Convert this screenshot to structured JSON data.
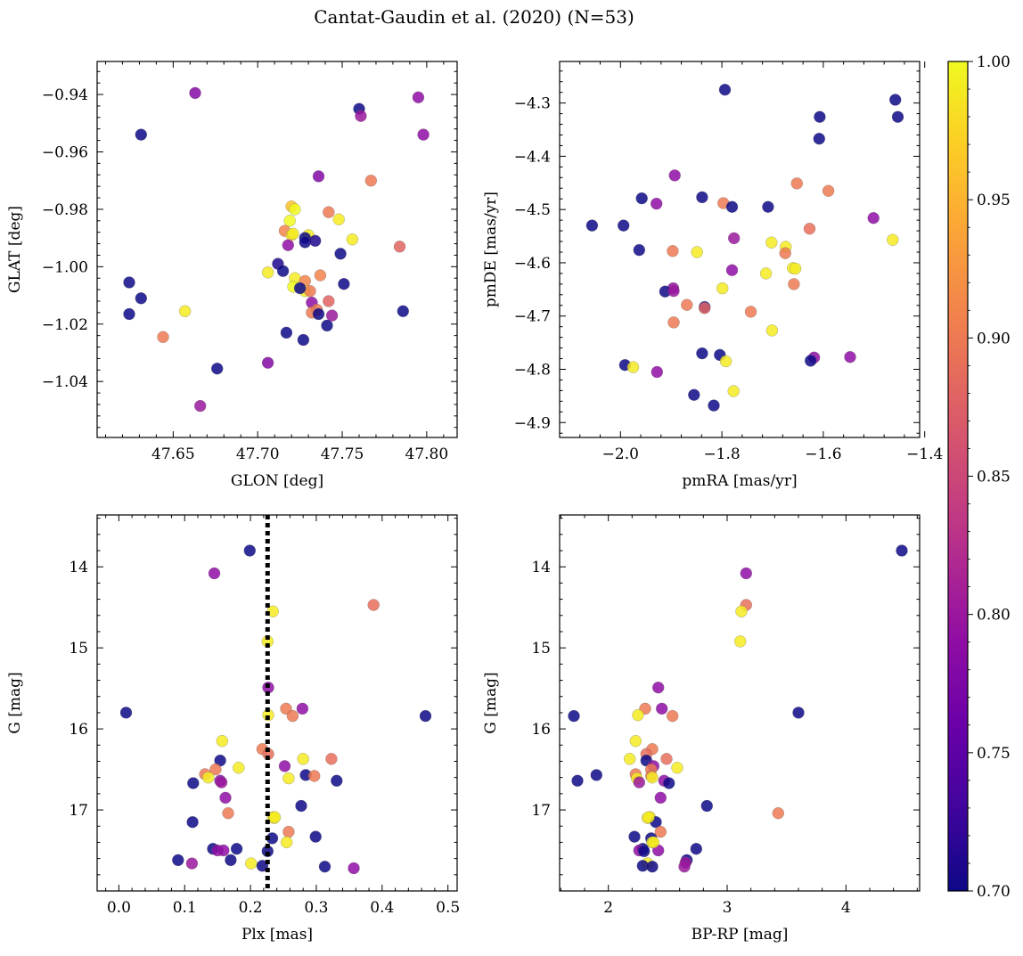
{
  "figure": {
    "title": "Cantat-Gaudin et al. (2020) (N=53)"
  },
  "colorbar": {
    "min": 0.7,
    "max": 1.0,
    "ticks": [
      0.7,
      0.75,
      0.8,
      0.85,
      0.9,
      0.95,
      1.0
    ],
    "tick_labels": [
      "0.70",
      "0.75",
      "0.80",
      "0.85",
      "0.90",
      "0.95",
      "1.00"
    ],
    "colormap": "plasma"
  },
  "chart_data": [
    {
      "type": "scatter",
      "xlabel": "GLON [deg]",
      "ylabel": "GLAT [deg]",
      "xlim": [
        47.605,
        47.818
      ],
      "ylim": [
        -1.0595,
        -0.9285
      ],
      "y_inverted": false,
      "xticks": [
        47.65,
        47.7,
        47.75,
        47.8
      ],
      "xtick_labels": [
        "47.65",
        "47.70",
        "47.75",
        "47.80"
      ],
      "yticks": [
        -0.94,
        -0.96,
        -0.98,
        -1.0,
        -1.02,
        -1.04
      ],
      "ytick_labels": [
        "−0.94",
        "−0.96",
        "−0.98",
        "−1.00",
        "−1.02",
        "−1.04"
      ],
      "points": [
        [
          47.663,
          -0.9395,
          0.78
        ],
        [
          47.795,
          -0.941,
          0.79
        ],
        [
          47.76,
          -0.945,
          0.7
        ],
        [
          47.761,
          -0.9475,
          0.8
        ],
        [
          47.631,
          -0.954,
          0.7
        ],
        [
          47.798,
          -0.954,
          0.79
        ],
        [
          47.736,
          -0.9685,
          0.78
        ],
        [
          47.767,
          -0.97,
          0.9
        ],
        [
          47.72,
          -0.979,
          0.96
        ],
        [
          47.722,
          -0.98,
          1.0
        ],
        [
          47.73,
          -0.989,
          0.99
        ],
        [
          47.742,
          -0.981,
          0.9
        ],
        [
          47.719,
          -0.984,
          1.0
        ],
        [
          47.748,
          -0.9835,
          0.99
        ],
        [
          47.716,
          -0.9875,
          0.91
        ],
        [
          47.72,
          -0.989,
          0.98
        ],
        [
          47.721,
          -0.9885,
          0.99
        ],
        [
          47.728,
          -0.99,
          0.7
        ],
        [
          47.728,
          -0.9915,
          0.7
        ],
        [
          47.734,
          -0.991,
          0.71
        ],
        [
          47.756,
          -0.9905,
          0.99
        ],
        [
          47.718,
          -0.9925,
          0.79
        ],
        [
          47.749,
          -0.9955,
          0.7
        ],
        [
          47.712,
          -0.999,
          0.71
        ],
        [
          47.715,
          -1.0015,
          0.7
        ],
        [
          47.706,
          -1.002,
          0.99
        ],
        [
          47.722,
          -1.004,
          0.99
        ],
        [
          47.737,
          -1.003,
          0.91
        ],
        [
          47.728,
          -1.005,
          0.91
        ],
        [
          47.751,
          -1.006,
          0.7
        ],
        [
          47.721,
          -1.007,
          1.0
        ],
        [
          47.728,
          -1.0085,
          0.99
        ],
        [
          47.731,
          -1.0085,
          0.9
        ],
        [
          47.742,
          -1.012,
          0.88
        ],
        [
          47.732,
          -1.0125,
          0.79
        ],
        [
          47.735,
          -1.015,
          0.9
        ],
        [
          47.732,
          -1.016,
          0.9
        ],
        [
          47.736,
          -1.0165,
          0.7
        ],
        [
          47.744,
          -1.017,
          0.8
        ],
        [
          47.624,
          -1.0055,
          0.7
        ],
        [
          47.631,
          -1.011,
          0.7
        ],
        [
          47.624,
          -1.0165,
          0.7
        ],
        [
          47.657,
          -1.0155,
          0.99
        ],
        [
          47.786,
          -1.0155,
          0.7
        ],
        [
          47.741,
          -1.0205,
          0.7
        ],
        [
          47.717,
          -1.023,
          0.7
        ],
        [
          47.644,
          -1.0245,
          0.9
        ],
        [
          47.727,
          -1.0255,
          0.7
        ],
        [
          47.706,
          -1.0335,
          0.78
        ],
        [
          47.676,
          -1.0355,
          0.7
        ],
        [
          47.666,
          -1.0485,
          0.8
        ],
        [
          47.784,
          -0.993,
          0.88
        ],
        [
          47.725,
          -1.0075,
          0.7
        ]
      ]
    },
    {
      "type": "scatter",
      "xlabel": "pmRA [mas/yr]",
      "ylabel": "pmDE [mas/yr]",
      "xlim": [
        -2.12,
        -1.41
      ],
      "ylim": [
        -4.928,
        -4.222
      ],
      "y_inverted": false,
      "xticks": [
        -2.0,
        -1.8,
        -1.6,
        -1.4
      ],
      "xtick_labels": [
        "−2.0",
        "−1.8",
        "−1.6",
        "−1.4"
      ],
      "yticks": [
        -4.3,
        -4.4,
        -4.5,
        -4.6,
        -4.7,
        -4.8,
        -4.9
      ],
      "ytick_labels": [
        "−4.3",
        "−4.4",
        "−4.5",
        "−4.6",
        "−4.7",
        "−4.8",
        "−4.9"
      ],
      "points": [
        [
          -1.794,
          -4.275,
          0.7
        ],
        [
          -1.458,
          -4.294,
          0.7
        ],
        [
          -1.607,
          -4.326,
          0.7
        ],
        [
          -1.453,
          -4.326,
          0.7
        ],
        [
          -1.608,
          -4.367,
          0.7
        ],
        [
          -1.893,
          -4.436,
          0.79
        ],
        [
          -1.652,
          -4.451,
          0.9
        ],
        [
          -1.59,
          -4.465,
          0.9
        ],
        [
          -1.839,
          -4.477,
          0.7
        ],
        [
          -1.958,
          -4.479,
          0.7
        ],
        [
          -1.929,
          -4.489,
          0.79
        ],
        [
          -1.797,
          -4.488,
          0.9
        ],
        [
          -1.78,
          -4.495,
          0.7
        ],
        [
          -1.709,
          -4.495,
          0.7
        ],
        [
          -1.501,
          -4.516,
          0.79
        ],
        [
          -2.056,
          -4.53,
          0.7
        ],
        [
          -1.994,
          -4.53,
          0.7
        ],
        [
          -1.627,
          -4.536,
          0.89
        ],
        [
          -1.776,
          -4.554,
          0.8
        ],
        [
          -1.463,
          -4.557,
          0.99
        ],
        [
          -1.702,
          -4.562,
          0.99
        ],
        [
          -1.674,
          -4.57,
          0.99
        ],
        [
          -1.963,
          -4.576,
          0.7
        ],
        [
          -1.897,
          -4.578,
          0.9
        ],
        [
          -1.849,
          -4.58,
          0.99
        ],
        [
          -1.675,
          -4.582,
          0.9
        ],
        [
          -1.66,
          -4.61,
          0.99
        ],
        [
          -1.655,
          -4.611,
          0.99
        ],
        [
          -1.78,
          -4.614,
          0.79
        ],
        [
          -1.713,
          -4.62,
          0.99
        ],
        [
          -1.658,
          -4.64,
          0.9
        ],
        [
          -1.799,
          -4.648,
          0.99
        ],
        [
          -1.896,
          -4.648,
          0.79
        ],
        [
          -1.912,
          -4.654,
          0.7
        ],
        [
          -1.895,
          -4.653,
          0.8
        ],
        [
          -1.869,
          -4.679,
          0.9
        ],
        [
          -1.834,
          -4.683,
          0.7
        ],
        [
          -1.834,
          -4.685,
          0.88
        ],
        [
          -1.743,
          -4.692,
          0.9
        ],
        [
          -1.895,
          -4.712,
          0.9
        ],
        [
          -1.701,
          -4.727,
          0.99
        ],
        [
          -1.839,
          -4.77,
          0.7
        ],
        [
          -1.804,
          -4.773,
          0.7
        ],
        [
          -1.618,
          -4.778,
          0.79
        ],
        [
          -1.547,
          -4.777,
          0.79
        ],
        [
          -1.625,
          -4.784,
          0.7
        ],
        [
          -1.792,
          -4.785,
          0.99
        ],
        [
          -1.991,
          -4.792,
          0.7
        ],
        [
          -1.975,
          -4.796,
          0.99
        ],
        [
          -1.928,
          -4.805,
          0.79
        ],
        [
          -1.777,
          -4.841,
          0.99
        ],
        [
          -1.855,
          -4.848,
          0.7
        ],
        [
          -1.816,
          -4.868,
          0.7
        ]
      ]
    },
    {
      "type": "scatter",
      "xlabel": "Plx [mas]",
      "ylabel": "G [mag]",
      "xlim": [
        -0.033,
        0.514
      ],
      "ylim": [
        18.0,
        13.36
      ],
      "y_inverted": true,
      "xticks": [
        0.0,
        0.1,
        0.2,
        0.3,
        0.4,
        0.5
      ],
      "xtick_labels": [
        "0.0",
        "0.1",
        "0.2",
        "0.3",
        "0.4",
        "0.5"
      ],
      "yticks": [
        14,
        15,
        16,
        17
      ],
      "ytick_labels": [
        "14",
        "15",
        "16",
        "17"
      ],
      "vline": {
        "x": 0.226,
        "style": "dotted",
        "color": "#000000"
      },
      "points": [
        [
          0.199,
          13.8,
          0.7
        ],
        [
          0.145,
          14.08,
          0.79
        ],
        [
          0.387,
          14.47,
          0.89
        ],
        [
          0.234,
          14.55,
          0.99
        ],
        [
          0.226,
          14.92,
          0.99
        ],
        [
          0.227,
          15.49,
          0.79
        ],
        [
          0.011,
          15.8,
          0.7
        ],
        [
          0.466,
          15.84,
          0.7
        ],
        [
          0.254,
          15.75,
          0.9
        ],
        [
          0.279,
          15.75,
          0.79
        ],
        [
          0.264,
          15.84,
          0.9
        ],
        [
          0.227,
          15.83,
          0.99
        ],
        [
          0.157,
          16.15,
          0.99
        ],
        [
          0.218,
          16.25,
          0.9
        ],
        [
          0.227,
          16.31,
          0.89
        ],
        [
          0.28,
          16.37,
          0.99
        ],
        [
          0.323,
          16.37,
          0.89
        ],
        [
          0.154,
          16.39,
          0.7
        ],
        [
          0.252,
          16.46,
          0.79
        ],
        [
          0.182,
          16.48,
          0.99
        ],
        [
          0.147,
          16.5,
          0.9
        ],
        [
          0.131,
          16.56,
          0.9
        ],
        [
          0.284,
          16.57,
          0.7
        ],
        [
          0.297,
          16.58,
          0.9
        ],
        [
          0.136,
          16.6,
          0.99
        ],
        [
          0.258,
          16.61,
          0.99
        ],
        [
          0.154,
          16.64,
          0.79
        ],
        [
          0.156,
          16.66,
          0.8
        ],
        [
          0.331,
          16.64,
          0.7
        ],
        [
          0.113,
          16.67,
          0.7
        ],
        [
          0.162,
          16.85,
          0.79
        ],
        [
          0.277,
          16.95,
          0.7
        ],
        [
          0.166,
          17.04,
          0.9
        ],
        [
          0.234,
          17.09,
          0.99
        ],
        [
          0.236,
          17.1,
          0.99
        ],
        [
          0.112,
          17.15,
          0.7
        ],
        [
          0.258,
          17.27,
          0.9
        ],
        [
          0.299,
          17.33,
          0.7
        ],
        [
          0.233,
          17.35,
          0.7
        ],
        [
          0.255,
          17.4,
          0.99
        ],
        [
          0.143,
          17.48,
          0.7
        ],
        [
          0.15,
          17.5,
          0.79
        ],
        [
          0.159,
          17.5,
          0.79
        ],
        [
          0.179,
          17.48,
          0.7
        ],
        [
          0.226,
          17.51,
          0.7
        ],
        [
          0.09,
          17.62,
          0.7
        ],
        [
          0.17,
          17.62,
          0.7
        ],
        [
          0.111,
          17.66,
          0.8
        ],
        [
          0.201,
          17.66,
          0.99
        ],
        [
          0.218,
          17.69,
          0.7
        ],
        [
          0.313,
          17.7,
          0.7
        ],
        [
          0.357,
          17.72,
          0.79
        ],
        [
          0.237,
          17.09,
          0.99
        ]
      ]
    },
    {
      "type": "scatter",
      "xlabel": "BP-RP [mag]",
      "ylabel": "G [mag]",
      "xlim": [
        1.59,
        4.62
      ],
      "ylim": [
        18.0,
        13.36
      ],
      "y_inverted": true,
      "xticks": [
        2,
        3,
        4
      ],
      "xtick_labels": [
        "2",
        "3",
        "4"
      ],
      "yticks": [
        14,
        15,
        16,
        17
      ],
      "ytick_labels": [
        "14",
        "15",
        "16",
        "17"
      ],
      "points": [
        [
          4.47,
          13.8,
          0.7
        ],
        [
          3.16,
          14.08,
          0.79
        ],
        [
          3.16,
          14.47,
          0.89
        ],
        [
          3.12,
          14.55,
          0.99
        ],
        [
          3.11,
          14.92,
          0.99
        ],
        [
          2.42,
          15.49,
          0.79
        ],
        [
          3.6,
          15.8,
          0.7
        ],
        [
          1.71,
          15.84,
          0.7
        ],
        [
          2.31,
          15.75,
          0.9
        ],
        [
          2.45,
          15.75,
          0.79
        ],
        [
          2.54,
          15.84,
          0.9
        ],
        [
          2.25,
          15.83,
          0.99
        ],
        [
          2.23,
          16.15,
          0.99
        ],
        [
          2.37,
          16.25,
          0.9
        ],
        [
          2.32,
          16.31,
          0.89
        ],
        [
          2.18,
          16.37,
          0.99
        ],
        [
          2.49,
          16.37,
          0.89
        ],
        [
          2.32,
          16.39,
          0.7
        ],
        [
          2.38,
          16.46,
          0.79
        ],
        [
          2.58,
          16.48,
          0.99
        ],
        [
          2.36,
          16.5,
          0.9
        ],
        [
          2.23,
          16.56,
          0.9
        ],
        [
          1.9,
          16.57,
          0.7
        ],
        [
          2.36,
          16.58,
          0.9
        ],
        [
          2.37,
          16.6,
          0.99
        ],
        [
          2.24,
          16.61,
          0.99
        ],
        [
          2.47,
          16.64,
          0.79
        ],
        [
          2.26,
          16.66,
          0.8
        ],
        [
          1.74,
          16.64,
          0.7
        ],
        [
          2.51,
          16.67,
          0.7
        ],
        [
          2.44,
          16.85,
          0.79
        ],
        [
          2.83,
          16.95,
          0.7
        ],
        [
          3.43,
          17.04,
          0.9
        ],
        [
          2.35,
          17.09,
          0.99
        ],
        [
          2.33,
          17.1,
          0.99
        ],
        [
          2.4,
          17.15,
          0.7
        ],
        [
          2.44,
          17.27,
          0.9
        ],
        [
          2.22,
          17.33,
          0.7
        ],
        [
          2.36,
          17.35,
          0.7
        ],
        [
          2.37,
          17.4,
          0.99
        ],
        [
          2.29,
          17.48,
          0.7
        ],
        [
          2.26,
          17.5,
          0.79
        ],
        [
          2.42,
          17.5,
          0.79
        ],
        [
          2.74,
          17.48,
          0.7
        ],
        [
          2.3,
          17.51,
          0.7
        ],
        [
          2.66,
          17.62,
          0.7
        ],
        [
          2.65,
          17.65,
          0.8
        ],
        [
          2.64,
          17.7,
          0.8
        ],
        [
          2.33,
          17.66,
          0.99
        ],
        [
          2.29,
          17.69,
          0.7
        ],
        [
          2.37,
          17.7,
          0.7
        ],
        [
          2.34,
          17.09,
          0.99
        ],
        [
          2.38,
          17.4,
          0.99
        ]
      ]
    }
  ]
}
